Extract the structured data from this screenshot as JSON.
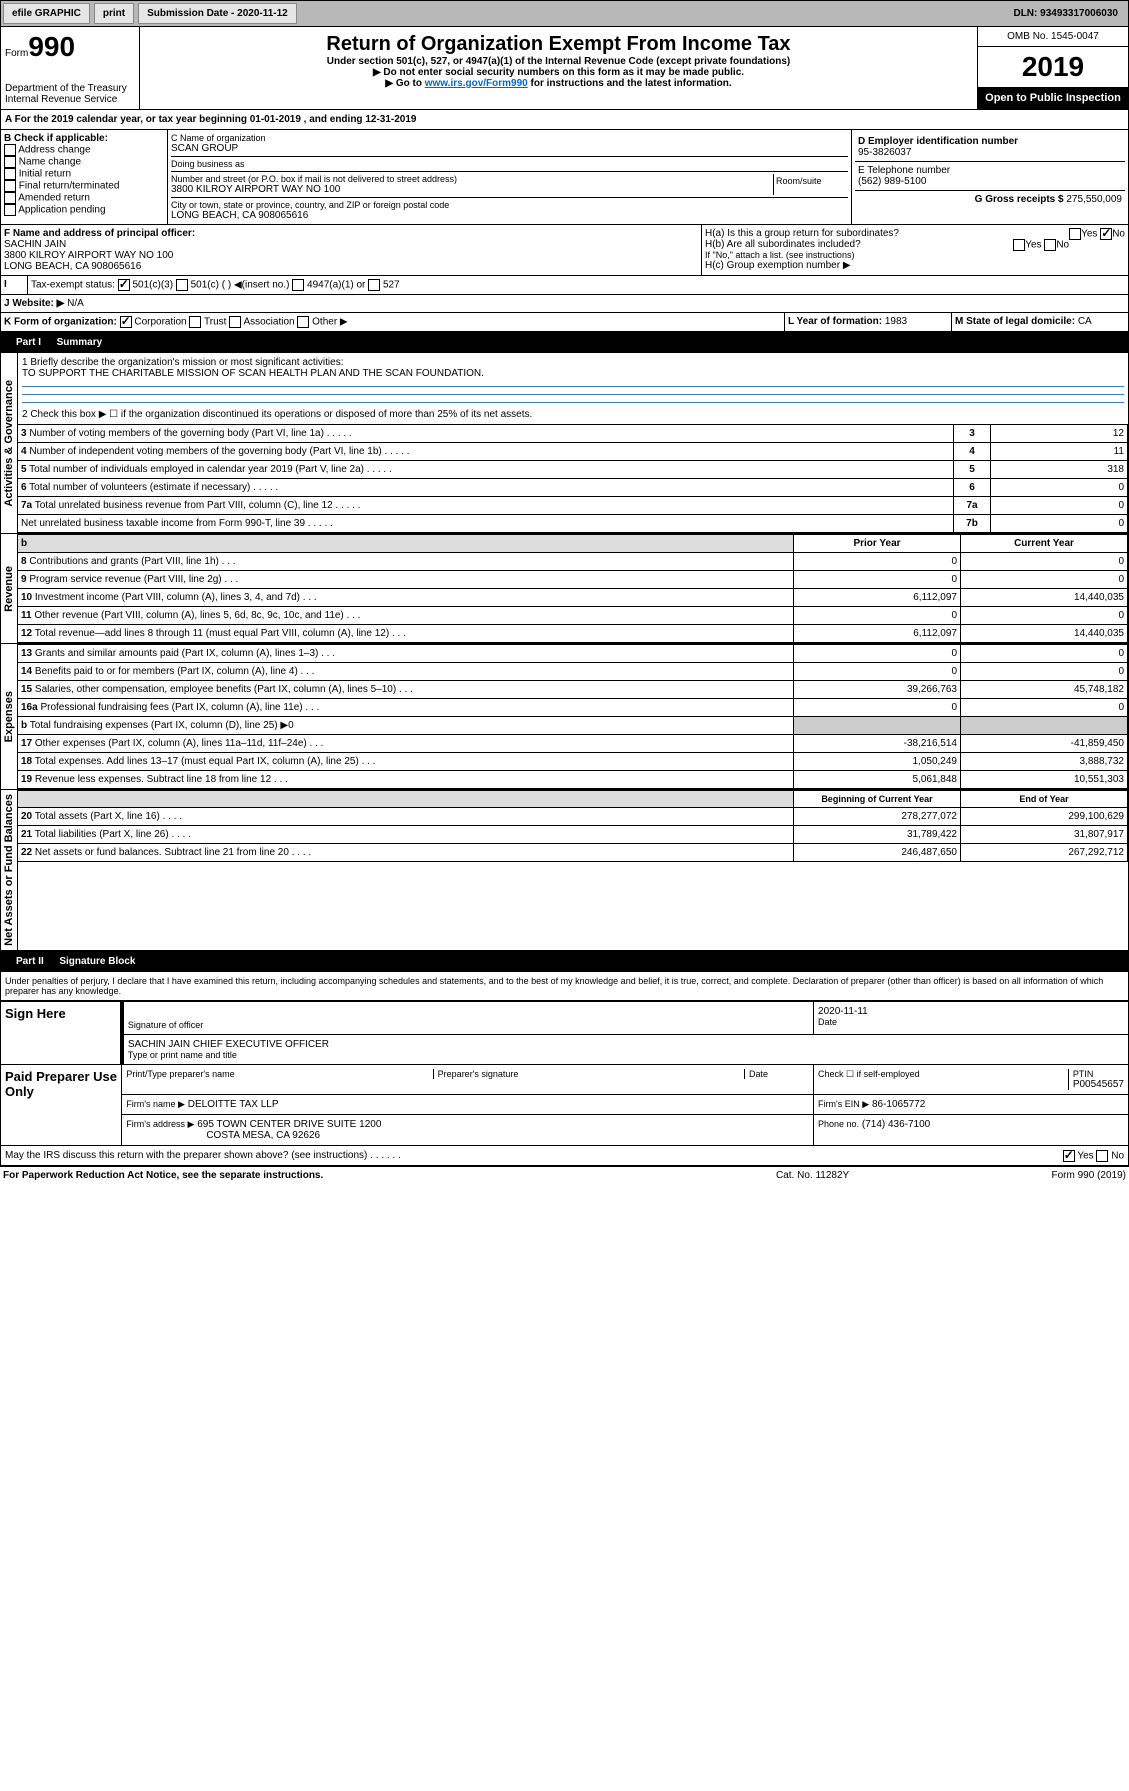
{
  "topbar": {
    "efile": "efile GRAPHIC",
    "print": "print",
    "submission": "Submission Date - 2020-11-12",
    "dln": "DLN: 93493317006030"
  },
  "header": {
    "form_label": "Form",
    "form_num": "990",
    "dept": "Department of the Treasury Internal Revenue Service",
    "title": "Return of Organization Exempt From Income Tax",
    "subtitle": "Under section 501(c), 527, or 4947(a)(1) of the Internal Revenue Code (except private foundations)",
    "note1": "▶ Do not enter social security numbers on this form as it may be made public.",
    "note2": "▶ Go to",
    "link": "www.irs.gov/Form990",
    "note3": "for instructions and the latest information.",
    "omb": "OMB No. 1545-0047",
    "year": "2019",
    "open": "Open to Public Inspection"
  },
  "A": {
    "line": "A For the 2019 calendar year, or tax year beginning 01-01-2019 , and ending 12-31-2019"
  },
  "B": {
    "label": "B Check if applicable:",
    "opts": [
      "Address change",
      "Name change",
      "Initial return",
      "Final return/terminated",
      "Amended return",
      "Application pending"
    ]
  },
  "C": {
    "name_label": "C Name of organization",
    "name": "SCAN GROUP",
    "dba_label": "Doing business as",
    "dba": "",
    "addr_label": "Number and street (or P.O. box if mail is not delivered to street address)",
    "room": "Room/suite",
    "addr": "3800 KILROY AIRPORT WAY NO 100",
    "city_label": "City or town, state or province, country, and ZIP or foreign postal code",
    "city": "LONG BEACH, CA 908065616"
  },
  "D": {
    "label": "D Employer identification number",
    "val": "95-3826037"
  },
  "E": {
    "label": "E Telephone number",
    "val": "(562) 989-5100"
  },
  "F": {
    "label": "F Name and address of principal officer:",
    "name": "SACHIN JAIN",
    "addr": "3800 KILROY AIRPORT WAY NO 100\nLONG BEACH, CA 908065616"
  },
  "G": {
    "label": "G Gross receipts $",
    "val": "275,550,009"
  },
  "H": {
    "a": "H(a) Is this a group return for subordinates?",
    "b": "H(b) Are all subordinates included?",
    "note": "If \"No,\" attach a list. (see instructions)",
    "c": "H(c) Group exemption number ▶"
  },
  "I": {
    "label": "Tax-exempt status:",
    "opts": [
      "501(c)(3)",
      "501(c) ( ) ◀(insert no.)",
      "4947(a)(1) or",
      "527"
    ]
  },
  "J": {
    "label": "J Website: ▶",
    "val": "N/A"
  },
  "K": {
    "label": "K Form of organization:",
    "opts": [
      "Corporation",
      "Trust",
      "Association",
      "Other ▶"
    ]
  },
  "L": {
    "label": "L Year of formation:",
    "val": "1983"
  },
  "M": {
    "label": "M State of legal domicile:",
    "val": "CA"
  },
  "partI": {
    "title": "Part I",
    "subtitle": "Summary",
    "line1": "1 Briefly describe the organization's mission or most significant activities:",
    "mission": "TO SUPPORT THE CHARITABLE MISSION OF SCAN HEALTH PLAN AND THE SCAN FOUNDATION.",
    "line2": "2 Check this box ▶ ☐ if the organization discontinued its operations or disposed of more than 25% of its net assets.",
    "rows": [
      {
        "n": "3",
        "t": "Number of voting members of the governing body (Part VI, line 1a)",
        "box": "3",
        "v": "12"
      },
      {
        "n": "4",
        "t": "Number of independent voting members of the governing body (Part VI, line 1b)",
        "box": "4",
        "v": "11"
      },
      {
        "n": "5",
        "t": "Total number of individuals employed in calendar year 2019 (Part V, line 2a)",
        "box": "5",
        "v": "318"
      },
      {
        "n": "6",
        "t": "Total number of volunteers (estimate if necessary)",
        "box": "6",
        "v": "0"
      },
      {
        "n": "7a",
        "t": "Total unrelated business revenue from Part VIII, column (C), line 12",
        "box": "7a",
        "v": "0"
      },
      {
        "n": "",
        "t": "Net unrelated business taxable income from Form 990-T, line 39",
        "box": "7b",
        "v": "0"
      }
    ],
    "prior": "Prior Year",
    "current": "Current Year",
    "rev": [
      {
        "n": "8",
        "t": "Contributions and grants (Part VIII, line 1h)",
        "p": "0",
        "c": "0"
      },
      {
        "n": "9",
        "t": "Program service revenue (Part VIII, line 2g)",
        "p": "0",
        "c": "0"
      },
      {
        "n": "10",
        "t": "Investment income (Part VIII, column (A), lines 3, 4, and 7d)",
        "p": "6,112,097",
        "c": "14,440,035"
      },
      {
        "n": "11",
        "t": "Other revenue (Part VIII, column (A), lines 5, 6d, 8c, 9c, 10c, and 11e)",
        "p": "0",
        "c": "0"
      },
      {
        "n": "12",
        "t": "Total revenue—add lines 8 through 11 (must equal Part VIII, column (A), line 12)",
        "p": "6,112,097",
        "c": "14,440,035"
      }
    ],
    "exp": [
      {
        "n": "13",
        "t": "Grants and similar amounts paid (Part IX, column (A), lines 1–3)",
        "p": "0",
        "c": "0"
      },
      {
        "n": "14",
        "t": "Benefits paid to or for members (Part IX, column (A), line 4)",
        "p": "0",
        "c": "0"
      },
      {
        "n": "15",
        "t": "Salaries, other compensation, employee benefits (Part IX, column (A), lines 5–10)",
        "p": "39,266,763",
        "c": "45,748,182"
      },
      {
        "n": "16a",
        "t": "Professional fundraising fees (Part IX, column (A), line 11e)",
        "p": "0",
        "c": "0"
      },
      {
        "n": "b",
        "t": "Total fundraising expenses (Part IX, column (D), line 25) ▶0",
        "p": "",
        "c": ""
      },
      {
        "n": "17",
        "t": "Other expenses (Part IX, column (A), lines 11a–11d, 11f–24e)",
        "p": "-38,216,514",
        "c": "-41,859,450"
      },
      {
        "n": "18",
        "t": "Total expenses. Add lines 13–17 (must equal Part IX, column (A), line 25)",
        "p": "1,050,249",
        "c": "3,888,732"
      },
      {
        "n": "19",
        "t": "Revenue less expenses. Subtract line 18 from line 12",
        "p": "5,061,848",
        "c": "10,551,303"
      }
    ],
    "bal_begin": "Beginning of Current Year",
    "bal_end": "End of Year",
    "bal": [
      {
        "n": "20",
        "t": "Total assets (Part X, line 16)",
        "p": "278,277,072",
        "c": "299,100,629"
      },
      {
        "n": "21",
        "t": "Total liabilities (Part X, line 26)",
        "p": "31,789,422",
        "c": "31,807,917"
      },
      {
        "n": "22",
        "t": "Net assets or fund balances. Subtract line 21 from line 20",
        "p": "246,487,650",
        "c": "267,292,712"
      }
    ],
    "side_gov": "Activities & Governance",
    "side_rev": "Revenue",
    "side_exp": "Expenses",
    "side_bal": "Net Assets or Fund Balances"
  },
  "partII": {
    "title": "Part II",
    "subtitle": "Signature Block",
    "decl": "Under penalties of perjury, I declare that I have examined this return, including accompanying schedules and statements, and to the best of my knowledge and belief, it is true, correct, and complete. Declaration of preparer (other than officer) is based on all information of which preparer has any knowledge.",
    "sign_here": "Sign Here",
    "sig_officer": "Signature of officer",
    "date_label": "Date",
    "date": "2020-11-11",
    "name_title": "SACHIN JAIN CHIEF EXECUTIVE OFFICER",
    "type_name": "Type or print name and title",
    "paid": "Paid Preparer Use Only",
    "prep_name_label": "Print/Type preparer's name",
    "prep_sig": "Preparer's signature",
    "prep_date": "Date",
    "check_self": "Check ☐ if self-employed",
    "ptin": "PTIN",
    "ptin_val": "P00545657",
    "firm_name_label": "Firm's name ▶",
    "firm_name": "DELOITTE TAX LLP",
    "firm_ein_label": "Firm's EIN ▶",
    "firm_ein": "86-1065772",
    "firm_addr_label": "Firm's address ▶",
    "firm_addr": "695 TOWN CENTER DRIVE SUITE 1200",
    "firm_city": "COSTA MESA, CA 92626",
    "phone_label": "Phone no.",
    "phone": "(714) 436-7100",
    "discuss": "May the IRS discuss this return with the preparer shown above? (see instructions)"
  },
  "footer": {
    "pra": "For Paperwork Reduction Act Notice, see the separate instructions.",
    "cat": "Cat. No. 11282Y",
    "form": "Form 990 (2019)"
  }
}
